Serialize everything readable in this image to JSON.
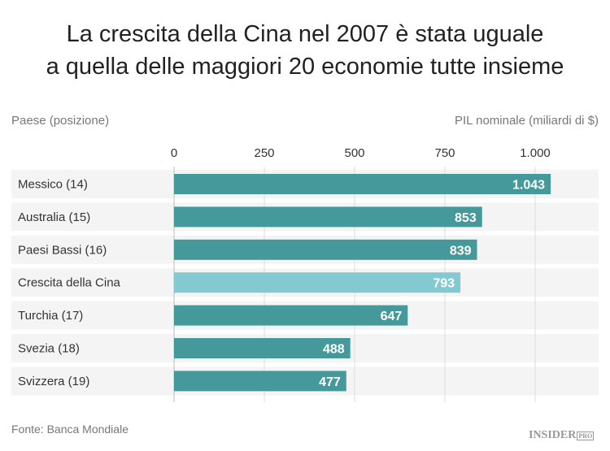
{
  "chart_data": {
    "type": "bar",
    "orientation": "horizontal",
    "title": "La crescita della Cina nel 2007 è stata uguale a quella delle maggiori 20 economie tutte insieme",
    "title_lines": [
      "La crescita della Cina nel 2007 è stata uguale",
      "a quella delle maggiori 20 economie tutte insieme"
    ],
    "category_header": "Paese (posizione)",
    "value_header": "PIL nominale (miliardi di $)",
    "categories": [
      "Messico (14)",
      "Australia (15)",
      "Paesi Bassi (16)",
      "Crescita della Cina",
      "Turchia (17)",
      "Svezia (18)",
      "Svizzera (19)"
    ],
    "values": [
      1043,
      853,
      839,
      793,
      647,
      488,
      477
    ],
    "value_labels": [
      "1.043",
      "853",
      "839",
      "793",
      "647",
      "488",
      "477"
    ],
    "highlight": [
      false,
      false,
      false,
      true,
      false,
      false,
      false
    ],
    "xlim": [
      0,
      1130
    ],
    "ticks": [
      0,
      250,
      500,
      750,
      1000
    ],
    "tick_labels": [
      "0",
      "250",
      "500",
      "750",
      "1.000"
    ],
    "grid": true,
    "colors": {
      "bar": "#45999b",
      "highlight": "#83c9d2",
      "row_bg": "#f4f4f4"
    },
    "source": "Fonte: Banca Mondiale",
    "logo": "INSIDER PRO"
  }
}
